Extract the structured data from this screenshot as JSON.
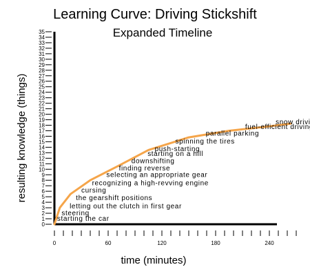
{
  "chart_data": {
    "type": "line",
    "title": "Learning Curve: Driving Stickshift",
    "subtitle": "Expanded Timeline",
    "xlabel": "time (minutes)",
    "ylabel": "resulting knowledge (things)",
    "xlim": [
      0,
      270
    ],
    "ylim": [
      0,
      35
    ],
    "x_ticks": [
      0,
      60,
      120,
      180,
      240
    ],
    "y_ticks": [
      0,
      1,
      2,
      3,
      4,
      5,
      6,
      7,
      8,
      9,
      10,
      11,
      12,
      13,
      14,
      15,
      16,
      17,
      18,
      19,
      20,
      21,
      22,
      23,
      24,
      25,
      26,
      27,
      28,
      29,
      30,
      31,
      32,
      33,
      34,
      35
    ],
    "grid": false,
    "line_color": "#f5a54a",
    "x": [
      0,
      6,
      18,
      40,
      70,
      105,
      150,
      195,
      235,
      264
    ],
    "y": [
      0,
      3,
      5.5,
      8,
      10.5,
      13.5,
      15.8,
      17,
      17.7,
      18.3
    ],
    "annotations": [
      {
        "label": "starting the car",
        "x": 3,
        "y": 0.6
      },
      {
        "label": "steering",
        "x": 8,
        "y": 1.6
      },
      {
        "label": "letting out the clutch in first gear",
        "x": 17,
        "y": 2.9
      },
      {
        "label": "the gearshift positions",
        "x": 24,
        "y": 4.4
      },
      {
        "label": "cursing",
        "x": 30,
        "y": 5.8
      },
      {
        "label": "recognizing a high-revving engine",
        "x": 42,
        "y": 7.1
      },
      {
        "label": "selecting an appropriate gear",
        "x": 58,
        "y": 8.6
      },
      {
        "label": "finding reverse",
        "x": 72,
        "y": 9.8
      },
      {
        "label": "downshifting",
        "x": 86,
        "y": 11.1
      },
      {
        "label": "starting on a hill",
        "x": 104,
        "y": 12.4
      },
      {
        "label": "push-starting",
        "x": 112,
        "y": 13.3
      },
      {
        "label": "spinning the tires",
        "x": 135,
        "y": 14.7
      },
      {
        "label": "parallel parking",
        "x": 169,
        "y": 16.1
      },
      {
        "label": "fuel-efficient driving",
        "x": 213,
        "y": 17.3
      },
      {
        "label": "snow driving",
        "x": 247,
        "y": 18.2
      }
    ]
  }
}
